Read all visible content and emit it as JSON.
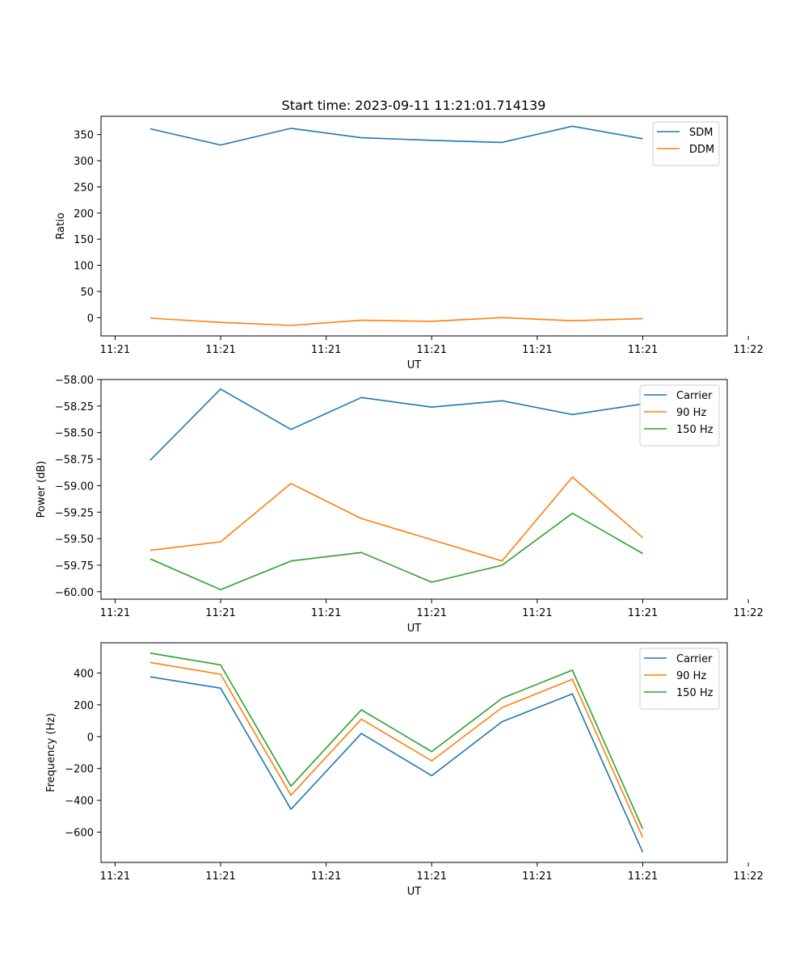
{
  "figure": {
    "title": "Start time: 2023-09-11 11:21:01.714139"
  },
  "colors": {
    "series1": "#1f77b4",
    "series2": "#ff7f0e",
    "series3": "#2ca02c"
  },
  "chart_data": [
    {
      "type": "line",
      "title": "Start time: 2023-09-11 11:21:01.714139",
      "xlabel": "UT",
      "ylabel": "Ratio",
      "x": [
        1,
        2,
        3,
        4,
        5,
        6,
        7,
        8
      ],
      "xlim": [
        0.3,
        9.2
      ],
      "xticks": [
        0.5,
        2,
        3.5,
        5,
        6.5,
        8,
        9.5
      ],
      "xtick_labels": [
        "11:21",
        "11:21",
        "11:21",
        "11:21",
        "11:21",
        "11:21",
        "11:22"
      ],
      "ylim": [
        -35,
        385
      ],
      "yticks": [
        0,
        50,
        100,
        150,
        200,
        250,
        300,
        350
      ],
      "ytick_labels": [
        "0",
        "50",
        "100",
        "150",
        "200",
        "250",
        "300",
        "350"
      ],
      "legend": "top-right",
      "series": [
        {
          "name": "SDM",
          "color": "#1f77b4",
          "values": [
            361,
            330,
            362,
            344,
            339,
            335,
            366,
            342
          ]
        },
        {
          "name": "DDM",
          "color": "#ff7f0e",
          "values": [
            -1,
            -9,
            -15,
            -5,
            -7,
            0,
            -6,
            -2
          ]
        }
      ]
    },
    {
      "type": "line",
      "title": "",
      "xlabel": "UT",
      "ylabel": "Power (dB)",
      "x": [
        1,
        2,
        3,
        4,
        5,
        6,
        7,
        8
      ],
      "xlim": [
        0.3,
        9.2
      ],
      "xticks": [
        0.5,
        2,
        3.5,
        5,
        6.5,
        8,
        9.5
      ],
      "xtick_labels": [
        "11:21",
        "11:21",
        "11:21",
        "11:21",
        "11:21",
        "11:21",
        "11:22"
      ],
      "ylim": [
        -60.07,
        -58.0
      ],
      "yticks": [
        -60.0,
        -59.75,
        -59.5,
        -59.25,
        -59.0,
        -58.75,
        -58.5,
        -58.25,
        -58.0
      ],
      "ytick_labels": [
        "−60.00",
        "−59.75",
        "−59.50",
        "−59.25",
        "−59.00",
        "−58.75",
        "−58.50",
        "−58.25",
        "−58.00"
      ],
      "legend": "top-right",
      "series": [
        {
          "name": "Carrier",
          "color": "#1f77b4",
          "values": [
            -58.76,
            -58.09,
            -58.47,
            -58.17,
            -58.26,
            -58.2,
            -58.33,
            -58.23
          ]
        },
        {
          "name": "90 Hz",
          "color": "#ff7f0e",
          "values": [
            -59.61,
            -59.53,
            -58.98,
            -59.31,
            -59.51,
            -59.71,
            -58.92,
            -59.49
          ]
        },
        {
          "name": "150 Hz",
          "color": "#2ca02c",
          "values": [
            -59.69,
            -59.98,
            -59.71,
            -59.63,
            -59.91,
            -59.75,
            -59.26,
            -59.64
          ]
        }
      ]
    },
    {
      "type": "line",
      "title": "",
      "xlabel": "UT",
      "ylabel": "Frequency (Hz)",
      "x": [
        1,
        2,
        3,
        4,
        5,
        6,
        7,
        8
      ],
      "xlim": [
        0.3,
        9.2
      ],
      "xticks": [
        0.5,
        2,
        3.5,
        5,
        6.5,
        8,
        9.5
      ],
      "xtick_labels": [
        "11:21",
        "11:21",
        "11:21",
        "11:21",
        "11:21",
        "11:21",
        "11:22"
      ],
      "ylim": [
        -790,
        590
      ],
      "yticks": [
        -600,
        -400,
        -200,
        0,
        200,
        400
      ],
      "ytick_labels": [
        "−600",
        "−400",
        "−200",
        "0",
        "200",
        "400"
      ],
      "legend": "top-right",
      "series": [
        {
          "name": "Carrier",
          "color": "#1f77b4",
          "values": [
            376,
            305,
            -456,
            20,
            -245,
            94,
            269,
            -726
          ]
        },
        {
          "name": "90 Hz",
          "color": "#ff7f0e",
          "values": [
            466,
            392,
            -368,
            110,
            -152,
            183,
            360,
            -633
          ]
        },
        {
          "name": "150 Hz",
          "color": "#2ca02c",
          "values": [
            525,
            451,
            -311,
            169,
            -94,
            241,
            418,
            -580
          ]
        }
      ]
    }
  ]
}
